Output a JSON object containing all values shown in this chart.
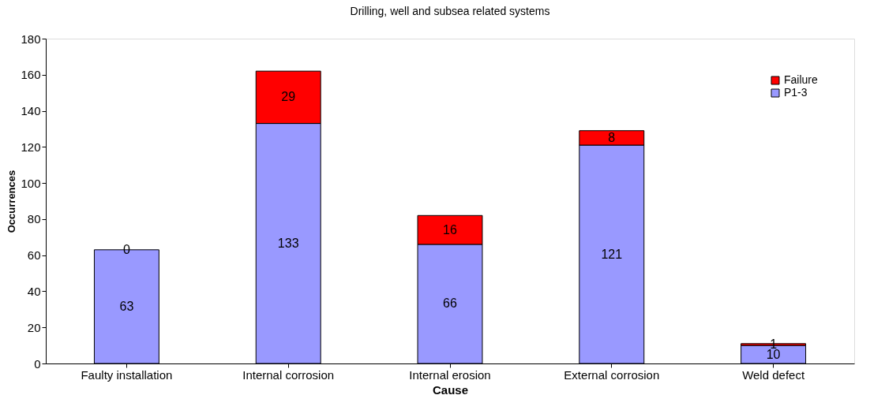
{
  "chart_data": {
    "type": "bar",
    "title": "Drilling, well and subsea related systems",
    "xlabel": "Cause",
    "ylabel": "Occurrences",
    "categories": [
      "Faulty installation",
      "Internal corrosion",
      "Internal erosion",
      "External corrosion",
      "Weld defect"
    ],
    "stacked": true,
    "series": [
      {
        "name": "P1-3",
        "color": "#9999ff",
        "values": [
          63,
          133,
          66,
          121,
          10
        ]
      },
      {
        "name": "Failure",
        "color": "#ff0000",
        "values": [
          0,
          29,
          16,
          8,
          1
        ]
      }
    ],
    "ylim": [
      0,
      180
    ],
    "yticks": [
      0,
      20,
      40,
      60,
      80,
      100,
      120,
      140,
      160,
      180
    ],
    "grid": false,
    "legend": "top right",
    "data_labels": true
  }
}
